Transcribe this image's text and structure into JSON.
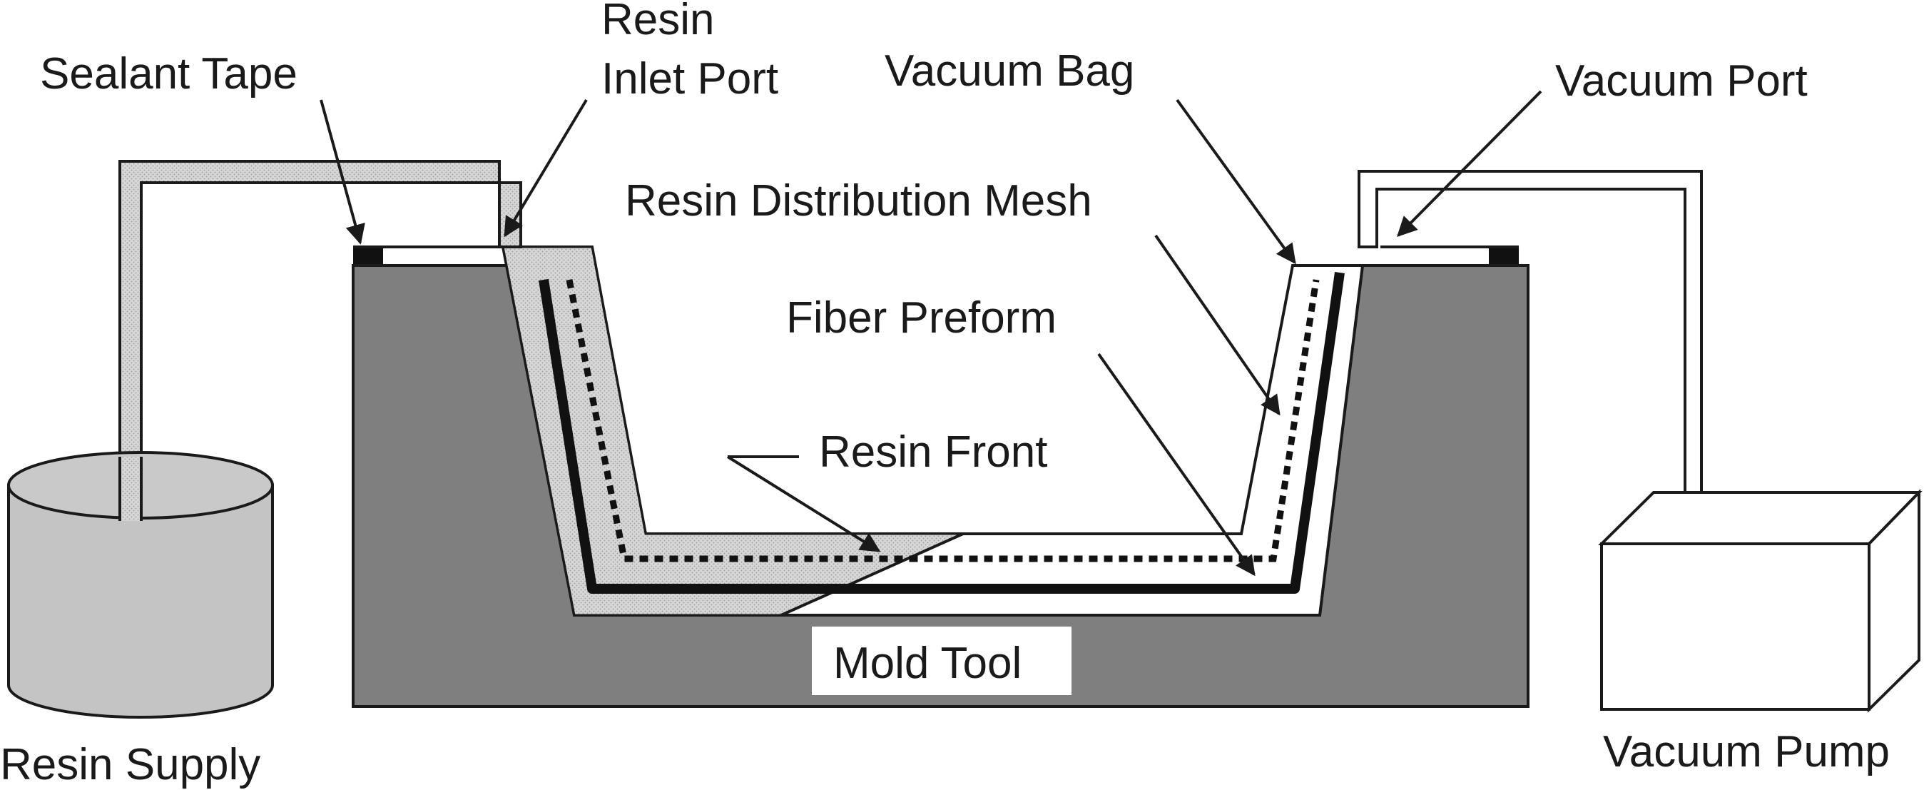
{
  "labels": {
    "sealant_tape": "Sealant Tape",
    "resin_inlet_line1": "Resin",
    "resin_inlet_line2": "Inlet Port",
    "vacuum_bag": "Vacuum Bag",
    "vacuum_port": "Vacuum Port",
    "resin_distribution_mesh": "Resin Distribution Mesh",
    "fiber_preform": "Fiber Preform",
    "resin_front": "Resin Front",
    "mold_tool": "Mold Tool",
    "resin_supply": "Resin Supply",
    "vacuum_pump": "Vacuum Pump"
  },
  "colors": {
    "mold_tool": "#7f7f7f",
    "resin_fill": "#d4d4d4",
    "container_gray": "#c4c4c4",
    "line": "#1a1a1a",
    "background": "#ffffff"
  }
}
